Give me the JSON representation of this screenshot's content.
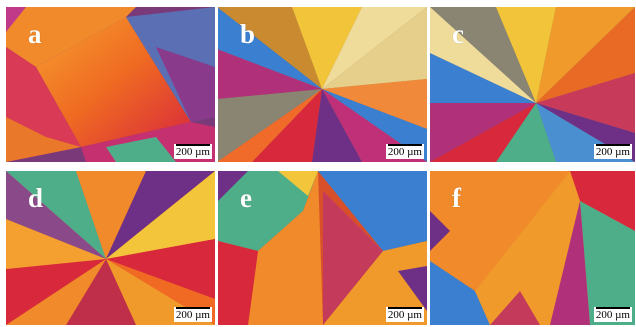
{
  "panels": [
    {
      "id": "a",
      "label": "a",
      "scale_text": "200 µm"
    },
    {
      "id": "b",
      "label": "b",
      "scale_text": "200 µm"
    },
    {
      "id": "c",
      "label": "c",
      "scale_text": "200 µm"
    },
    {
      "id": "d",
      "label": "d",
      "scale_text": "200 µm"
    },
    {
      "id": "e",
      "label": "e",
      "scale_text": "200 µm"
    },
    {
      "id": "f",
      "label": "f",
      "scale_text": "200 µm"
    }
  ],
  "colors": {
    "orange": "#f0641e",
    "red": "#d8283c",
    "magenta": "#b0307a",
    "purple": "#6e2f86",
    "blue": "#3a7fd0",
    "green": "#4fae8a",
    "yellow": "#f3c53a",
    "cream": "#efdc9a",
    "grey": "#8a8572"
  }
}
